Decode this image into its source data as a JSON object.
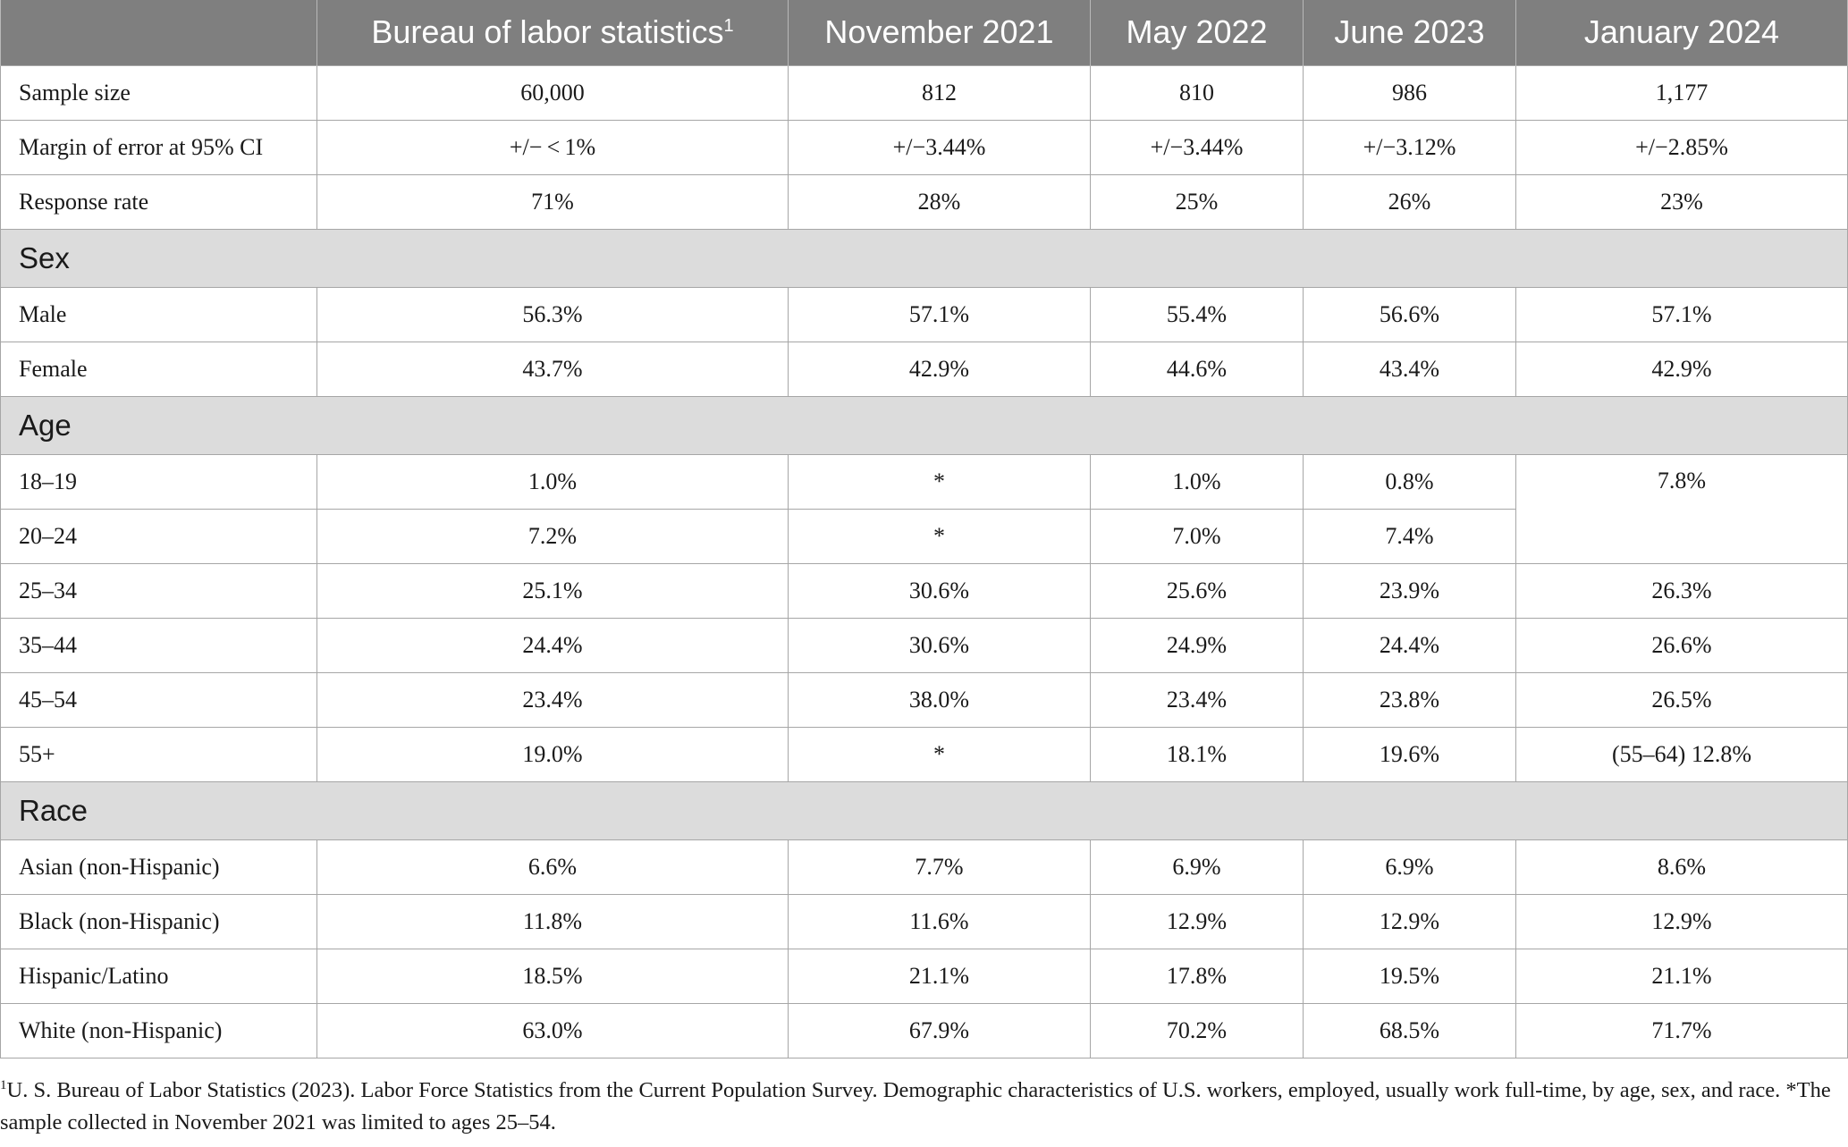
{
  "header": {
    "col0": "",
    "col1": "Bureau of labor statistics",
    "col1_sup": "1",
    "col2": "November 2021",
    "col3": "May 2022",
    "col4": "June 2023",
    "col5": "January 2024"
  },
  "rows": {
    "sample_size": {
      "label": "Sample size",
      "bls": "60,000",
      "nov2021": "812",
      "may2022": "810",
      "jun2023": "986",
      "jan2024": "1,177"
    },
    "margin": {
      "label": "Margin of error at 95% CI",
      "bls": "+/− < 1%",
      "nov2021": "+/−3.44%",
      "may2022": "+/−3.44%",
      "jun2023": "+/−3.12%",
      "jan2024": "+/−2.85%"
    },
    "response": {
      "label": "Response rate",
      "bls": "71%",
      "nov2021": "28%",
      "may2022": "25%",
      "jun2023": "26%",
      "jan2024": "23%"
    }
  },
  "sections": {
    "sex": {
      "title": "Sex",
      "male": {
        "label": "Male",
        "bls": "56.3%",
        "nov2021": "57.1%",
        "may2022": "55.4%",
        "jun2023": "56.6%",
        "jan2024": "57.1%"
      },
      "female": {
        "label": "Female",
        "bls": "43.7%",
        "nov2021": "42.9%",
        "may2022": "44.6%",
        "jun2023": "43.4%",
        "jan2024": "42.9%"
      }
    },
    "age": {
      "title": "Age",
      "a18_19": {
        "label": "18–19",
        "bls": "1.0%",
        "nov2021": "*",
        "may2022": "1.0%",
        "jun2023": "0.8%",
        "jan2024": "7.8%"
      },
      "a20_24": {
        "label": "20–24",
        "bls": "7.2%",
        "nov2021": "*",
        "may2022": "7.0%",
        "jun2023": "7.4%"
      },
      "a25_34": {
        "label": "25–34",
        "bls": "25.1%",
        "nov2021": "30.6%",
        "may2022": "25.6%",
        "jun2023": "23.9%",
        "jan2024": "26.3%"
      },
      "a35_44": {
        "label": "35–44",
        "bls": "24.4%",
        "nov2021": "30.6%",
        "may2022": "24.9%",
        "jun2023": "24.4%",
        "jan2024": "26.6%"
      },
      "a45_54": {
        "label": "45–54",
        "bls": "23.4%",
        "nov2021": "38.0%",
        "may2022": "23.4%",
        "jun2023": "23.8%",
        "jan2024": "26.5%"
      },
      "a55p": {
        "label": "55+",
        "bls": "19.0%",
        "nov2021": "*",
        "may2022": "18.1%",
        "jun2023": "19.6%",
        "jan2024": "(55–64) 12.8%"
      }
    },
    "race": {
      "title": "Race",
      "asian": {
        "label": "Asian (non-Hispanic)",
        "bls": "6.6%",
        "nov2021": "7.7%",
        "may2022": "6.9%",
        "jun2023": "6.9%",
        "jan2024": "8.6%"
      },
      "black": {
        "label": "Black (non-Hispanic)",
        "bls": "11.8%",
        "nov2021": "11.6%",
        "may2022": "12.9%",
        "jun2023": "12.9%",
        "jan2024": "12.9%"
      },
      "hispanic": {
        "label": "Hispanic/Latino",
        "bls": "18.5%",
        "nov2021": "21.1%",
        "may2022": "17.8%",
        "jun2023": "19.5%",
        "jan2024": "21.1%"
      },
      "white": {
        "label": "White (non-Hispanic)",
        "bls": "63.0%",
        "nov2021": "67.9%",
        "may2022": "70.2%",
        "jun2023": "68.5%",
        "jan2024": "71.7%"
      }
    }
  },
  "footnote": {
    "marker": "1",
    "text": "U. S. Bureau of Labor Statistics (2023). Labor Force Statistics from the Current Population Survey. Demographic characteristics of U.S. workers, employed, usually work full-time, by age, sex, and race. *The sample collected in November 2021 was limited to ages 25–54."
  }
}
